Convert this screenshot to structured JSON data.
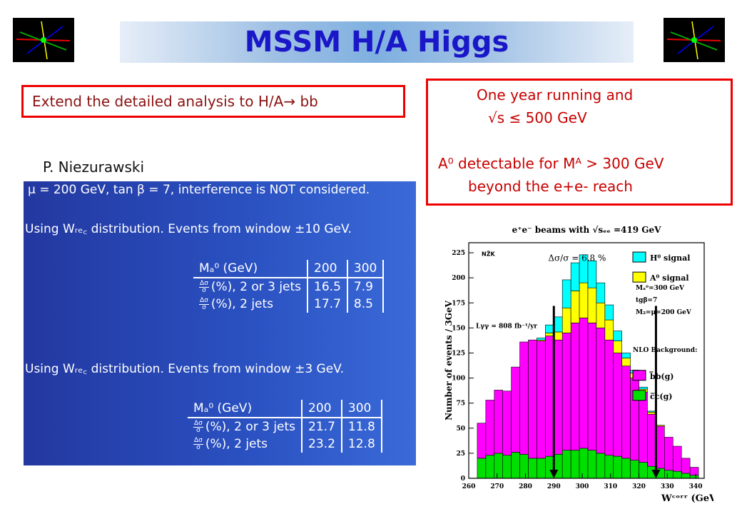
{
  "title": "MSSM H/A Higgs",
  "extend_text": "Extend the detailed analysis to H/A→ bb",
  "author": "P. Niezurawski",
  "running_box": {
    "line1": "One year running and",
    "line2": "√s ≤ 500 GeV",
    "line3": "A⁰ detectable for Mᴬ > 300 GeV",
    "line4": "beyond the e+e- reach"
  },
  "panel": {
    "line1": "μ = 200 GeV, tan β = 7, interference is NOT considered.",
    "line2": "Using Wᵣₑ꜀ distribution.  Events from window ±10 GeV.",
    "line3": "Using Wᵣₑ꜀ distribution.  Events from window ±3 GeV.",
    "col_header": "Mₐ⁰ (GeV)",
    "row1_label": "(%), 2 or 3 jets",
    "row2_label": "(%), 2 jets",
    "frac_num": "Δσ",
    "frac_den": "σ",
    "table1": {
      "masses": [
        "200",
        "300"
      ],
      "row1": [
        "16.5",
        "7.9"
      ],
      "row2": [
        "17.7",
        "8.5"
      ]
    },
    "table2": {
      "masses": [
        "200",
        "300"
      ],
      "row1": [
        "21.7",
        "11.8"
      ],
      "row2": [
        "23.2",
        "12.8"
      ]
    }
  },
  "chart_data": {
    "type": "area",
    "title": "e⁺e⁻ beams with √sₑₑ =419 GeV",
    "xlabel": "Wᶜᵒʳʳ (GeV)",
    "ylabel": "Number of events / 3GeV",
    "xlim": [
      260,
      343
    ],
    "ylim": [
      0,
      235
    ],
    "xticks": [
      "260",
      "270",
      "280",
      "290",
      "300",
      "310",
      "320",
      "330",
      "340"
    ],
    "yticks": [
      "0",
      "25",
      "50",
      "75",
      "100",
      "125",
      "150",
      "175",
      "200",
      "225"
    ],
    "bin_edges": [
      263,
      266,
      269,
      272,
      275,
      278,
      281,
      284,
      287,
      290,
      293,
      296,
      299,
      302,
      305,
      308,
      311,
      314,
      317,
      320,
      323,
      326,
      329,
      332,
      335,
      338,
      341
    ],
    "series": [
      {
        "name": "c̅c(g)",
        "color": "#00e000",
        "values": [
          20,
          23,
          25,
          23,
          26,
          24,
          20,
          20,
          22,
          24,
          28,
          28,
          30,
          28,
          25,
          23,
          22,
          20,
          18,
          16,
          12,
          10,
          8,
          7,
          5,
          3
        ]
      },
      {
        "name": "b̅b(g)",
        "color": "#ff00ff",
        "values": [
          35,
          55,
          63,
          64,
          85,
          112,
          118,
          117,
          120,
          114,
          117,
          127,
          130,
          127,
          125,
          115,
          103,
          92,
          82,
          70,
          52,
          42,
          33,
          25,
          15,
          8
        ]
      },
      {
        "name": "A⁰ signal",
        "color": "#ffff00",
        "values": [
          0,
          0,
          0,
          0,
          0,
          0,
          0,
          1,
          3,
          8,
          25,
          32,
          35,
          35,
          25,
          20,
          12,
          8,
          5,
          3,
          2,
          1,
          0,
          0,
          0,
          0
        ]
      },
      {
        "name": "H⁰ signal",
        "color": "#00ffff",
        "values": [
          0,
          0,
          0,
          0,
          0,
          0,
          0,
          2,
          8,
          15,
          28,
          28,
          28,
          27,
          20,
          15,
          10,
          5,
          3,
          2,
          1,
          0,
          0,
          0,
          0,
          0
        ]
      }
    ],
    "annotations": {
      "nzk": "NŽK",
      "ratio": "Δσ/σ = 6.8 %",
      "lumi": "Lγγ = 808 fb⁻¹/yr",
      "params": [
        "Mₐ⁰=300 GeV",
        "tgβ=7",
        "M₂=μ=200 GeV"
      ],
      "nlo": "NLO Background:"
    },
    "arrows_x": [
      290,
      326
    ]
  }
}
